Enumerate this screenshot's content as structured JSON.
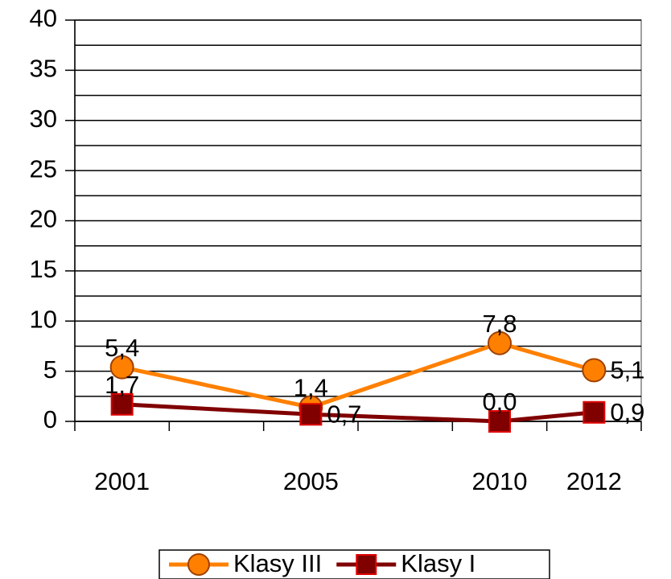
{
  "chart_data": {
    "type": "line",
    "categories": [
      "2001",
      null,
      "2005",
      null,
      "2010",
      "2012"
    ],
    "series": [
      {
        "name": "Klasy III",
        "color": "#ff8000",
        "marker": "circle",
        "values": [
          5.4,
          null,
          1.4,
          null,
          7.8,
          5.1
        ],
        "value_labels": [
          "5,4",
          null,
          "1,4",
          null,
          "7,8",
          "5,1"
        ]
      },
      {
        "name": "Klasy I",
        "color": "#800000",
        "marker": "square",
        "values": [
          1.7,
          null,
          0.7,
          null,
          0.0,
          0.9
        ],
        "value_labels": [
          "1,7",
          null,
          "0,7",
          null,
          "0,0",
          "0,9"
        ]
      }
    ],
    "connect_gaps": true,
    "ylim": [
      0,
      40
    ],
    "yticks": [
      0,
      5,
      10,
      15,
      20,
      25,
      30,
      35,
      40
    ],
    "yminor": [
      2.5,
      7.5,
      12.5,
      17.5,
      22.5,
      27.5,
      32.5,
      37.5
    ],
    "grid": true,
    "legend": "bottom"
  }
}
